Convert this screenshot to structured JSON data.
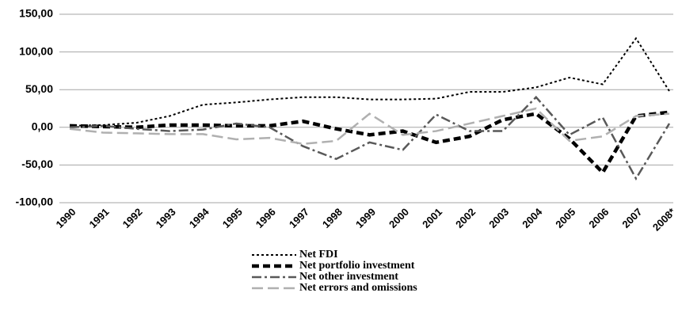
{
  "chart_data": {
    "type": "line",
    "categories": [
      "1990",
      "1991",
      "1992",
      "1993",
      "1994",
      "1995",
      "1996",
      "1997",
      "1998",
      "1999",
      "2000",
      "2001",
      "2002",
      "2003",
      "2004",
      "2005",
      "2006",
      "2007",
      "2008*"
    ],
    "series": [
      {
        "name": "Net FDI",
        "color": "#000000",
        "dash": "3,3",
        "width": 2,
        "values": [
          2,
          3,
          6,
          15,
          30,
          33,
          37,
          40,
          40,
          37,
          37,
          38,
          47,
          47,
          53,
          66,
          57,
          118,
          48
        ]
      },
      {
        "name": "Net portfolio investment",
        "color": "#000000",
        "dash": "9,5",
        "width": 4.5,
        "values": [
          2,
          1,
          0,
          3,
          3,
          2,
          2,
          8,
          -2,
          -10,
          -5,
          -20,
          -12,
          10,
          18,
          -15,
          -60,
          15,
          20
        ]
      },
      {
        "name": "Net other investment",
        "color": "#595959",
        "dash": "12,4,3,4",
        "width": 2.5,
        "values": [
          0,
          2,
          -2,
          -5,
          -3,
          5,
          0,
          -25,
          -42,
          -20,
          -30,
          17,
          -5,
          -5,
          40,
          -10,
          13,
          -68,
          5
        ]
      },
      {
        "name": "Net errors and omissions",
        "color": "#b0b0b0",
        "dash": "14,6",
        "width": 2.5,
        "values": [
          -2,
          -7,
          -8,
          -9,
          -9,
          -16,
          -14,
          -22,
          -18,
          18,
          -10,
          -5,
          5,
          15,
          25,
          -18,
          -12,
          15,
          18
        ]
      }
    ],
    "ylim": [
      -100,
      150
    ],
    "yticks": [
      {
        "value": -100,
        "label": "-100,00"
      },
      {
        "value": -50,
        "label": "-50,00"
      },
      {
        "value": 0,
        "label": "0,00"
      },
      {
        "value": 50,
        "label": "50,00"
      },
      {
        "value": 100,
        "label": "100,00"
      },
      {
        "value": 150,
        "label": "150,00"
      }
    ],
    "grid": true
  }
}
